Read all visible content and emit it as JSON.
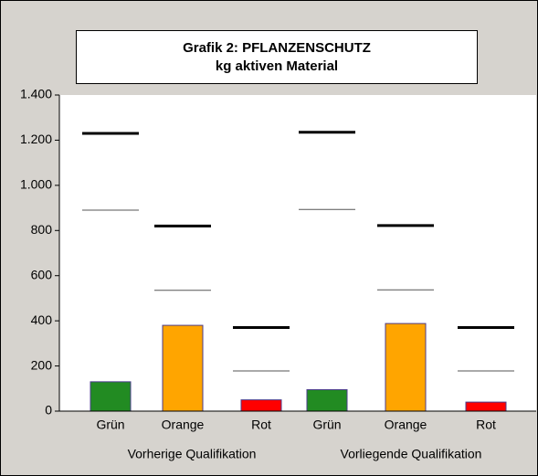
{
  "chart_data": {
    "type": "bar",
    "title": "Grafik 2: PFLANZENSCHUTZ",
    "subtitle": "kg aktiven Material",
    "categories": [
      "Grün",
      "Orange",
      "Rot",
      "Grün",
      "Orange",
      "Rot"
    ],
    "groups": [
      "Vorherige Qualifikation",
      "Vorliegende Qualifikation"
    ],
    "values": [
      130,
      380,
      50,
      95,
      388,
      40
    ],
    "colors": [
      "#228b22",
      "#ffa500",
      "#ff0000",
      "#228b22",
      "#ffa500",
      "#ff0000"
    ],
    "upper_line": [
      1230,
      820,
      370,
      1235,
      822,
      370
    ],
    "lower_line": [
      890,
      535,
      178,
      893,
      537,
      178
    ],
    "ylim": [
      0,
      1400
    ],
    "yticks": [
      0,
      200,
      400,
      600,
      800,
      {
        "value": 1000,
        "label": "1.000"
      },
      {
        "value": 1200,
        "label": "1.200"
      },
      {
        "value": 1400,
        "label": "1.400"
      }
    ]
  }
}
